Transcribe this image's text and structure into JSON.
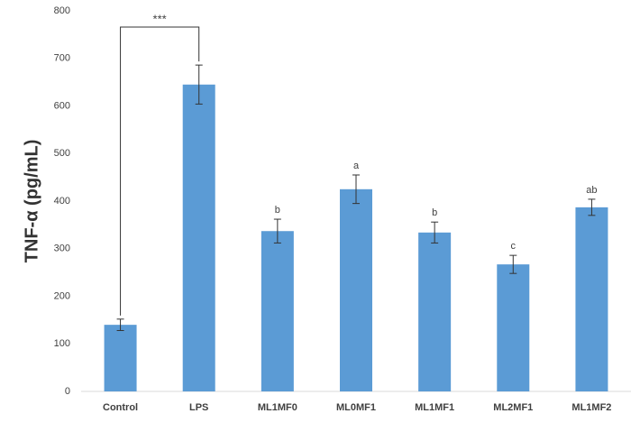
{
  "chart_data": {
    "type": "bar",
    "y_label": "TNF-α (pg/mL)",
    "categories": [
      "Control",
      "LPS",
      "ML1MF0",
      "ML0MF1",
      "ML1MF1",
      "ML2MF1",
      "ML1MF2"
    ],
    "values": [
      140,
      645,
      337,
      425,
      334,
      267,
      387
    ],
    "errors": [
      12,
      41,
      25,
      30,
      22,
      19,
      17
    ],
    "letters": [
      null,
      null,
      "b",
      "a",
      "b",
      "c",
      "ab"
    ],
    "significance": {
      "from": 0,
      "to": 1,
      "label": "***"
    },
    "color": "#5b9bd5",
    "ylim": [
      0,
      800
    ],
    "yticks": [
      0,
      100,
      200,
      300,
      400,
      500,
      600,
      700,
      800
    ],
    "grid": false
  }
}
